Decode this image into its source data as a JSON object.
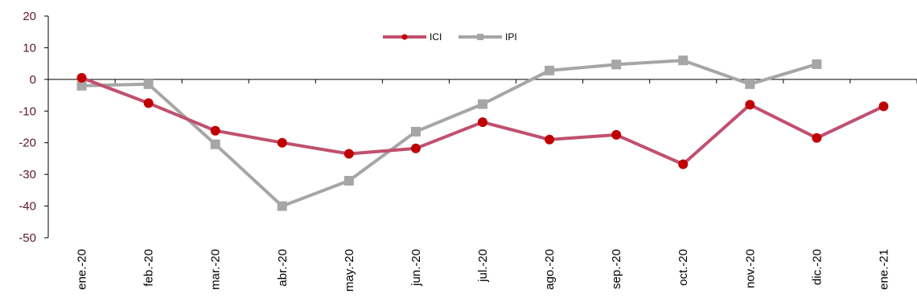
{
  "chart_data": {
    "type": "line",
    "title": "",
    "xlabel": "",
    "ylabel": "",
    "categories": [
      "ene.-20",
      "feb.-20",
      "mar.-20",
      "abr.-20",
      "may.-20",
      "jun.-20",
      "jul.-20",
      "ago.-20",
      "sep.-20",
      "oct.-20",
      "nov.-20",
      "dic.-20",
      "ene.-21"
    ],
    "ylim": [
      -50,
      20
    ],
    "yticks": [
      20,
      10,
      0,
      -10,
      -20,
      -30,
      -40,
      -50
    ],
    "grid": false,
    "legend_position": "top-center",
    "series": [
      {
        "name": "ICI",
        "color": "#c0506f",
        "marker": "circle",
        "marker_color": "#c00000",
        "values": [
          0.5,
          -7.5,
          -16.2,
          -20.0,
          -23.5,
          -21.8,
          -13.5,
          -19.0,
          -17.5,
          -26.8,
          -8.0,
          -18.5,
          -8.5
        ]
      },
      {
        "name": "IPI",
        "color": "#a6a6a6",
        "marker": "square",
        "marker_color": "#a6a6a6",
        "values": [
          -2.0,
          -1.5,
          -20.5,
          -40.0,
          -32.0,
          -16.5,
          -7.8,
          2.8,
          4.7,
          6.0,
          -1.5,
          4.8,
          null
        ]
      }
    ]
  }
}
